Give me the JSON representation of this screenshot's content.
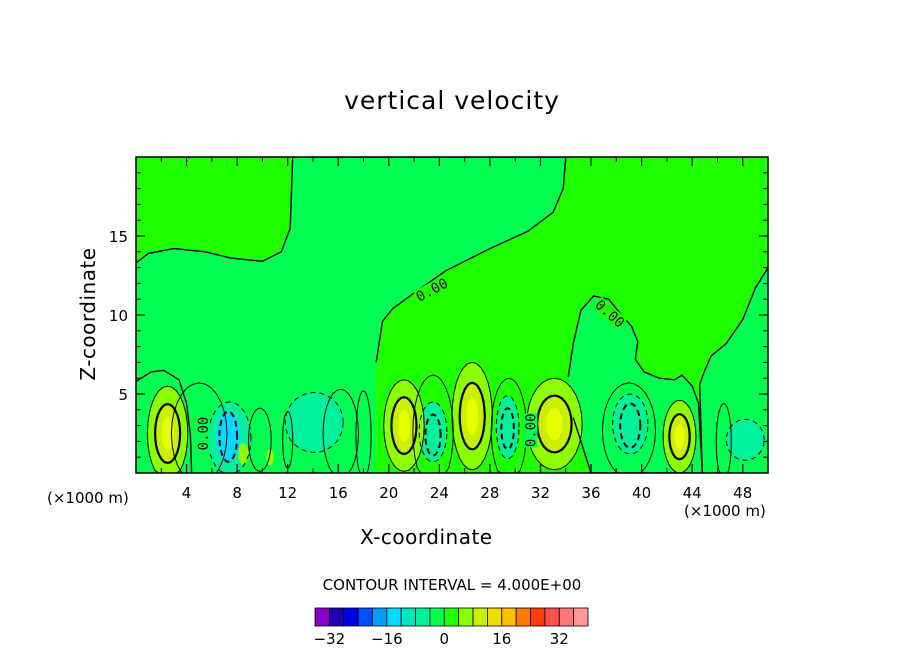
{
  "chart_data": {
    "type": "heatmap",
    "title": "vertical velocity",
    "xlabel": "X-coordinate",
    "ylabel": "Z-coordinate",
    "x_unit_label_left": "(×1000 m)",
    "x_unit_label_right": "(×1000 m)",
    "xlim": [
      0,
      50
    ],
    "ylim": [
      0,
      20
    ],
    "x_ticks": [
      4,
      8,
      12,
      16,
      20,
      24,
      28,
      32,
      36,
      40,
      44,
      48
    ],
    "y_ticks": [
      5,
      10,
      15
    ],
    "x_tick_labels": [
      "4",
      "8",
      "12",
      "16",
      "20",
      "24",
      "28",
      "32",
      "36",
      "40",
      "44",
      "48"
    ],
    "y_tick_labels": [
      "5",
      "10",
      "15"
    ],
    "contour_interval_text": "CONTOUR INTERVAL = 4.000E+00",
    "contour_labels": [
      "0.00",
      "0.00",
      "0.00",
      "0.00",
      "0.00"
    ],
    "colorbar": {
      "colors": [
        "#8c00c8",
        "#1e00b4",
        "#0000e6",
        "#0050ff",
        "#00a0ff",
        "#00dcff",
        "#00e6be",
        "#00f09b",
        "#00ff50",
        "#1eff00",
        "#8cff00",
        "#c8f000",
        "#f0dc00",
        "#ffbe00",
        "#ff7800",
        "#ff3c00",
        "#ff5050",
        "#ff7878",
        "#ff9696"
      ],
      "tick_labels": [
        "-32",
        "-16",
        "0",
        "16",
        "32"
      ],
      "tick_values": [
        -32,
        -16,
        0,
        16,
        32
      ]
    },
    "regions": {
      "background": "#1eff00",
      "upper_band": "#00ff50",
      "dark_green": "#00ff50",
      "cyan": "#00f09b",
      "blue_cyan": "#00dcff",
      "lime": "#8cff00",
      "yellow": "#c8f000",
      "yellow_core": "#e6ff00"
    },
    "extrema": [
      {
        "x": 2.5,
        "z": 2.4,
        "sign": "positive"
      },
      {
        "x": 7.3,
        "z": 2.3,
        "sign": "negative"
      },
      {
        "x": 21.1,
        "z": 3.0,
        "sign": "positive"
      },
      {
        "x": 23.5,
        "z": 2.4,
        "sign": "negative"
      },
      {
        "x": 26.6,
        "z": 3.5,
        "sign": "positive"
      },
      {
        "x": 29.4,
        "z": 2.8,
        "sign": "negative"
      },
      {
        "x": 33.1,
        "z": 3.0,
        "sign": "positive"
      },
      {
        "x": 39.1,
        "z": 3.0,
        "sign": "negative"
      },
      {
        "x": 43.0,
        "z": 2.1,
        "sign": "positive"
      }
    ]
  }
}
